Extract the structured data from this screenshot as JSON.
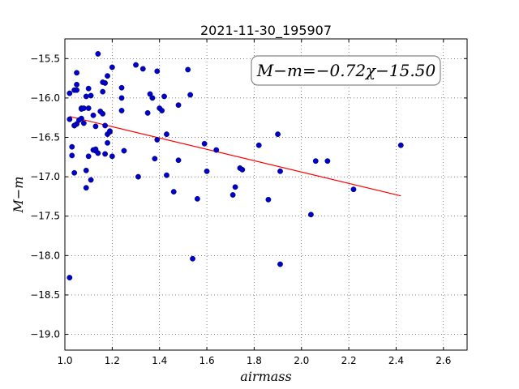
{
  "chart_data": {
    "type": "scatter",
    "title": "2021-11-30_195907",
    "xlabel": "airmass",
    "ylabel": "M−m",
    "xlim": [
      1.0,
      2.7
    ],
    "ylim": [
      -19.2,
      -15.25
    ],
    "xticks": [
      1.0,
      1.2,
      1.4,
      1.6,
      1.8,
      2.0,
      2.2,
      2.4,
      2.6
    ],
    "xtick_labels": [
      "1.0",
      "1.2",
      "1.4",
      "1.6",
      "1.8",
      "2.0",
      "2.2",
      "2.4",
      "2.6"
    ],
    "yticks": [
      -15.5,
      -16.0,
      -16.5,
      -17.0,
      -17.5,
      -18.0,
      -18.5,
      -19.0
    ],
    "ytick_labels": [
      "−15.5",
      "−16.0",
      "−16.5",
      "−17.0",
      "−17.5",
      "−18.0",
      "−18.5",
      "−19.0"
    ],
    "grid": true,
    "annotation": "M−m=−0.72χ−15.50",
    "point_color": "#0000cc",
    "fit_color": "#ff0000",
    "fit_line": {
      "slope": -0.72,
      "intercept": -15.5,
      "x": [
        1.02,
        2.42
      ]
    },
    "series": [
      {
        "x": [
          1.02,
          1.02,
          1.03,
          1.03,
          1.04,
          1.05,
          1.05,
          1.04,
          1.04,
          1.05,
          1.07,
          1.07,
          1.08,
          1.08,
          1.07,
          1.09,
          1.1,
          1.1,
          1.11,
          1.12,
          1.13,
          1.14,
          1.15,
          1.16,
          1.16,
          1.17,
          1.17,
          1.18,
          1.18,
          1.19,
          1.2,
          1.12,
          1.13,
          1.14,
          1.17,
          1.18,
          1.19,
          1.2,
          1.24,
          1.24,
          1.25,
          1.24,
          1.3,
          1.31,
          1.33,
          1.35,
          1.36,
          1.37,
          1.38,
          1.39,
          1.4,
          1.41,
          1.42,
          1.43,
          1.43,
          1.46,
          1.48,
          1.48,
          1.52,
          1.53,
          1.54,
          1.56,
          1.59,
          1.6,
          1.64,
          1.71,
          1.72,
          1.74,
          1.75,
          1.82,
          1.86,
          1.9,
          1.91,
          1.91,
          2.04,
          2.06,
          2.11,
          2.22,
          2.42,
          1.02,
          1.09,
          1.05,
          1.1,
          1.09,
          1.04,
          1.06,
          1.11,
          1.13,
          1.16,
          1.39
        ],
        "y": [
          -15.94,
          -16.27,
          -16.62,
          -16.73,
          -15.9,
          -15.68,
          -16.33,
          -16.35,
          -16.95,
          -15.83,
          -16.13,
          -16.26,
          -16.13,
          -16.32,
          -16.14,
          -15.98,
          -15.88,
          -16.13,
          -15.97,
          -16.22,
          -16.36,
          -15.44,
          -16.17,
          -15.8,
          -15.92,
          -16.35,
          -16.71,
          -16.57,
          -16.46,
          -16.43,
          -15.61,
          -16.66,
          -16.67,
          -16.7,
          -15.81,
          -15.72,
          -16.42,
          -16.74,
          -15.87,
          -16.16,
          -16.67,
          -16.0,
          -15.58,
          -17.0,
          -15.63,
          -16.19,
          -15.95,
          -16.0,
          -16.77,
          -15.66,
          -16.13,
          -16.16,
          -15.98,
          -16.46,
          -16.98,
          -17.19,
          -16.79,
          -16.09,
          -15.64,
          -15.96,
          -18.04,
          -17.28,
          -16.58,
          -16.93,
          -16.66,
          -17.23,
          -17.13,
          -16.89,
          -16.91,
          -16.6,
          -17.29,
          -16.46,
          -16.93,
          -18.11,
          -17.48,
          -16.8,
          -16.8,
          -17.16,
          -16.6,
          -18.28,
          -17.14,
          -15.9,
          -16.74,
          -16.92,
          -16.35,
          -16.28,
          -17.04,
          -16.65,
          -16.2,
          -16.53
        ]
      }
    ]
  }
}
